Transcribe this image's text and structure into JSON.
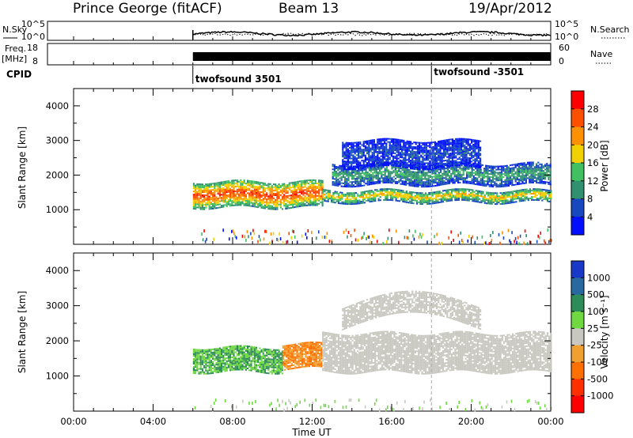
{
  "header": {
    "site": "Prince George (fitACF)",
    "beam": "Beam 13",
    "date": "19/Apr/2012"
  },
  "summary_panels": {
    "nsky_label": "N.Sky",
    "nsky_ticks": [
      "10^5",
      "10^0"
    ],
    "nsearch_label": "N.Search",
    "nsearch_ticks": [
      "10^5",
      "10^0"
    ],
    "freq_label_1": "Freq.",
    "freq_label_2": "[MHz]",
    "freq_ticks": [
      "18",
      "8"
    ],
    "nave_label": "Nave",
    "nave_ticks": [
      "60",
      "0"
    ],
    "cpid_label": "CPID",
    "cpid_entries": [
      {
        "text": "twofsound 3501",
        "time": 6.0
      },
      {
        "text": "twofsound -3501",
        "time": 18.0
      }
    ]
  },
  "axes": {
    "y_label": "Slant Range [km]",
    "y_ticks": [
      "4000",
      "3000",
      "2000",
      "1000"
    ],
    "x_label": "Time UT",
    "x_ticks": [
      "00:00",
      "04:00",
      "08:00",
      "12:00",
      "16:00",
      "20:00",
      "00:00"
    ]
  },
  "colorbars": {
    "power_label": "Power [dB]",
    "power_ticks": [
      "28",
      "24",
      "20",
      "16",
      "12",
      "8",
      "4"
    ],
    "power_colors": [
      "#ff0000",
      "#ff5000",
      "#ff9000",
      "#f0d000",
      "#40c060",
      "#309070",
      "#1848c0",
      "#0010ff"
    ],
    "velocity_label": "Velocity [m s⁻¹]",
    "velocity_ticks": [
      "1000",
      "500",
      "100",
      "25",
      "-25",
      "-100",
      "-500",
      "-1000"
    ],
    "velocity_colors": [
      "#1838c8",
      "#286aa0",
      "#2e8c58",
      "#70d840",
      "#c8c8c0",
      "#f0a030",
      "#ff7000",
      "#ff3000",
      "#ff0000"
    ]
  },
  "chart_data": {
    "type": "heatmap",
    "x_range_hours": [
      0,
      24
    ],
    "y_range_km": [
      0,
      4500
    ],
    "data_start_hour": 6.0,
    "cpid_change_hour": 18.0,
    "power_bands": [
      {
        "name": "lower band",
        "t_start": 6.0,
        "t_end": 12.5,
        "range_km": [
          1050,
          1800
        ],
        "power_db": 28
      },
      {
        "name": "lower band",
        "t_start": 12.5,
        "t_end": 24.0,
        "range_km": [
          1200,
          1550
        ],
        "power_db": 20
      },
      {
        "name": "upper band",
        "t_start": 13.0,
        "t_end": 24.0,
        "range_km": [
          1700,
          2300
        ],
        "power_db": 12
      },
      {
        "name": "upper band",
        "t_start": 13.5,
        "t_end": 20.5,
        "range_km": [
          2200,
          3000
        ],
        "power_db": 6
      }
    ],
    "velocity_bands": [
      {
        "t_start": 6.0,
        "t_end": 10.5,
        "range_km": [
          1100,
          1800
        ],
        "velocity_ms": 100
      },
      {
        "t_start": 10.5,
        "t_end": 12.5,
        "range_km": [
          1200,
          1900
        ],
        "velocity_ms": -100
      },
      {
        "t_start": 12.5,
        "t_end": 24.0,
        "range_km": [
          1100,
          2200
        ],
        "velocity_ms": 0
      }
    ]
  }
}
